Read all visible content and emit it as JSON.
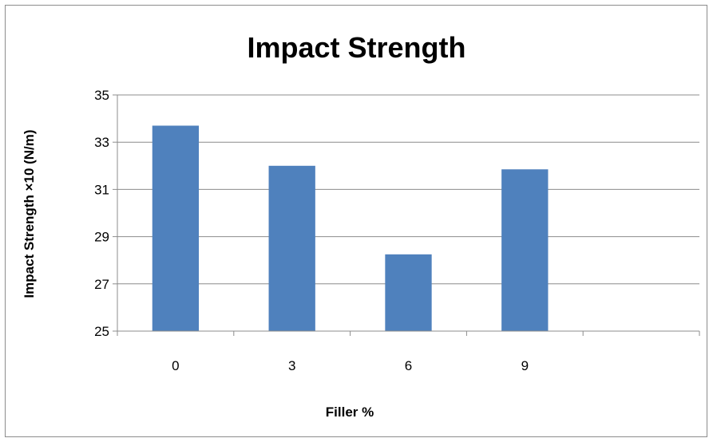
{
  "chart_data": {
    "type": "bar",
    "title": "Impact Strength",
    "xlabel": "Filler %",
    "ylabel": "Impact Strength ×10 (N/m)",
    "categories": [
      "0",
      "3",
      "6",
      "9",
      ""
    ],
    "values": [
      33.7,
      32.0,
      28.25,
      31.85,
      null
    ],
    "ylim": [
      25,
      35
    ],
    "yticks": [
      25,
      27,
      29,
      31,
      33,
      35
    ],
    "grid": true,
    "legend": "none",
    "bar_color": "#4f81bd"
  }
}
